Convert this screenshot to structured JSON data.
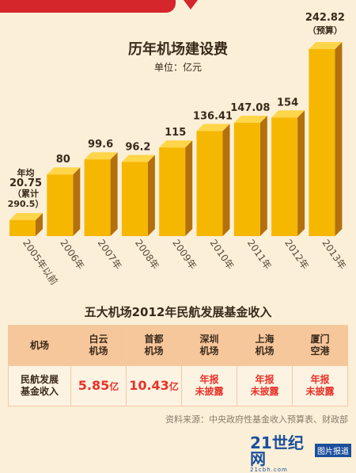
{
  "chart_data": {
    "type": "bar",
    "title": "历年机场建设费",
    "unit": "单位：亿元",
    "categories": [
      "2005年以前",
      "2006年",
      "2007年",
      "2008年",
      "2009年",
      "2010年",
      "2011年",
      "2012年",
      "2013年"
    ],
    "values": [
      20.75,
      80,
      99.6,
      96.2,
      115,
      136.41,
      147.08,
      154,
      242.82
    ],
    "value_labels": [
      "20.75",
      "80",
      "99.6",
      "96.2",
      "115",
      "136.41",
      "147.08",
      "154",
      "242.82"
    ],
    "first_bar_annotation": [
      "年均",
      "20.75",
      "（累计",
      "290.5）"
    ],
    "last_bar_annotation": "（预算）",
    "ylim": [
      0,
      250
    ],
    "bar_color": "#f5b700"
  },
  "table": {
    "title": "五大机场2012年民航发展基金收入",
    "header": [
      "机场",
      "白云\n机场",
      "首都\n机场",
      "深圳\n机场",
      "上海\n机场",
      "厦门\n空港"
    ],
    "row_label": "民航发展\n基金收入",
    "values": [
      {
        "num": "5.85",
        "unit": "亿"
      },
      {
        "num": "10.43",
        "unit": "亿"
      },
      {
        "text": "年报\n未披露"
      },
      {
        "text": "年报\n未披露"
      },
      {
        "text": "年报\n未披露"
      }
    ]
  },
  "source": "资料来源：中央政府性基金收入预算表、财政部",
  "logo": {
    "main": "21世纪网",
    "sub": "21cbh.com",
    "tag": "图片报道"
  }
}
